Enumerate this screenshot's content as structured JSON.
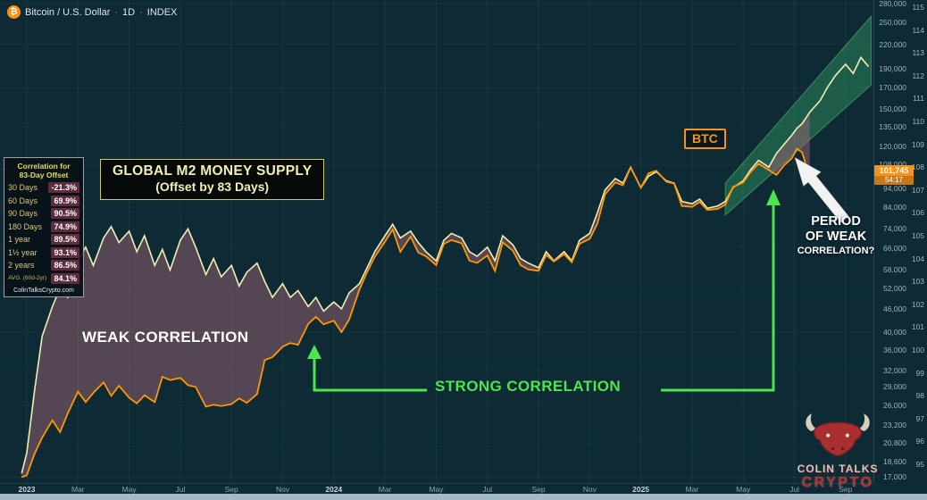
{
  "header": {
    "symbol": "Bitcoin / U.S. Dollar",
    "interval": "1D",
    "exchange": "INDEX",
    "separator": "·",
    "bitcoin_glyph": "₿"
  },
  "correlation_panel": {
    "title_line1": "Correlation for",
    "title_line2": "83-Day Offset",
    "rows": [
      {
        "label": "30 Days",
        "value": "-21.3%"
      },
      {
        "label": "60 Days",
        "value": "69.9%"
      },
      {
        "label": "90 Days",
        "value": "90.5%"
      },
      {
        "label": "180 Days",
        "value": "74.9%"
      },
      {
        "label": "1 year",
        "value": "89.5%"
      },
      {
        "label": "1½ year",
        "value": "93.1%"
      },
      {
        "label": "2 years",
        "value": "86.5%"
      }
    ],
    "avg_row": {
      "label": "AVG. (60d-2yr)",
      "value": "84.1%"
    },
    "footer": "ColinTalksCrypto.com"
  },
  "annotations": {
    "m2_label_line1": "GLOBAL M2 MONEY SUPPLY",
    "m2_label_line2": "(Offset by 83 Days)",
    "btc_label": "BTC",
    "weak": "WEAK CORRELATION",
    "strong": "STRONG CORRELATION",
    "period_weak_line1": "PERIOD",
    "period_weak_line2": "OF WEAK",
    "period_weak_line3": "CORRELATION?"
  },
  "price_tag": {
    "price": "101,745",
    "countdown": "54:17"
  },
  "watermark": {
    "line1": "COLIN TALKS",
    "line2": "CRYPTO"
  },
  "colors": {
    "background": "#0d2a35",
    "btc_line": "#ff9800",
    "m2_line": "#f2eeb3",
    "weak_fill": "rgba(171,104,119,0.45)",
    "channel_fill": "rgba(74,222,128,0.28)",
    "strong_green": "#4ce64c",
    "tag_orange": "#f7931a"
  },
  "chart_data": {
    "type": "line",
    "title": "Bitcoin / U.S. Dollar 1D with Global M2 Money Supply offset by 83 days",
    "x_labels": [
      "2023",
      "Mar",
      "May",
      "Jul",
      "Sep",
      "Nov",
      "2024",
      "Mar",
      "May",
      "Jul",
      "Sep",
      "Nov",
      "2025",
      "Mar",
      "May",
      "Jul",
      "Sep"
    ],
    "x_unit": "month index from Jan 2023 (2 months per labelled tick)",
    "price_axis": {
      "scale": "log",
      "range": [
        17000,
        280000
      ],
      "ticks": [
        280000,
        250000,
        220000,
        190000,
        170000,
        150000,
        135000,
        120000,
        108000,
        94000,
        84000,
        74000,
        66000,
        58000,
        52000,
        46000,
        40000,
        36000,
        32000,
        29000,
        26000,
        23200,
        20800,
        18600,
        17000
      ]
    },
    "m2_axis": {
      "scale": "linear",
      "range": [
        95,
        115
      ],
      "ticks": [
        115,
        114,
        113,
        112,
        111,
        110,
        109,
        108,
        107,
        106,
        105,
        104,
        103,
        102,
        101,
        100,
        99,
        98,
        97,
        96,
        95
      ]
    },
    "series": [
      {
        "name": "BTC / USD",
        "axis": "price",
        "color": "#ff9800",
        "points": [
          [
            -0.2,
            17000
          ],
          [
            0,
            17200
          ],
          [
            0.3,
            19500
          ],
          [
            0.6,
            21500
          ],
          [
            1,
            23800
          ],
          [
            1.3,
            22200
          ],
          [
            1.6,
            24800
          ],
          [
            2,
            28200
          ],
          [
            2.3,
            26500
          ],
          [
            2.6,
            28000
          ],
          [
            3,
            29800
          ],
          [
            3.3,
            27500
          ],
          [
            3.6,
            29200
          ],
          [
            4,
            27200
          ],
          [
            4.3,
            26300
          ],
          [
            4.6,
            27600
          ],
          [
            5,
            26500
          ],
          [
            5.3,
            30800
          ],
          [
            5.6,
            30200
          ],
          [
            6,
            30600
          ],
          [
            6.3,
            29300
          ],
          [
            6.6,
            29000
          ],
          [
            7,
            25800
          ],
          [
            7.3,
            26100
          ],
          [
            7.6,
            25900
          ],
          [
            8,
            26200
          ],
          [
            8.3,
            27100
          ],
          [
            8.6,
            26400
          ],
          [
            9,
            27800
          ],
          [
            9.3,
            34000
          ],
          [
            9.6,
            34600
          ],
          [
            10,
            36800
          ],
          [
            10.3,
            37600
          ],
          [
            10.6,
            37200
          ],
          [
            11,
            42100
          ],
          [
            11.3,
            43900
          ],
          [
            11.6,
            42000
          ],
          [
            12,
            42900
          ],
          [
            12.3,
            40100
          ],
          [
            12.6,
            43200
          ],
          [
            13,
            51600
          ],
          [
            13.3,
            57200
          ],
          [
            13.6,
            62600
          ],
          [
            14,
            68500
          ],
          [
            14.3,
            73600
          ],
          [
            14.6,
            64500
          ],
          [
            15,
            70600
          ],
          [
            15.3,
            64200
          ],
          [
            15.6,
            62800
          ],
          [
            16,
            59600
          ],
          [
            16.3,
            67600
          ],
          [
            16.6,
            69100
          ],
          [
            17,
            67800
          ],
          [
            17.3,
            61200
          ],
          [
            17.6,
            60400
          ],
          [
            18,
            63100
          ],
          [
            18.3,
            57600
          ],
          [
            18.6,
            68200
          ],
          [
            19,
            64900
          ],
          [
            19.3,
            59600
          ],
          [
            19.6,
            58100
          ],
          [
            20,
            57600
          ],
          [
            20.3,
            63300
          ],
          [
            20.6,
            60900
          ],
          [
            21,
            63600
          ],
          [
            21.3,
            60600
          ],
          [
            21.6,
            67600
          ],
          [
            22,
            69600
          ],
          [
            22.3,
            76200
          ],
          [
            22.6,
            90600
          ],
          [
            23,
            97200
          ],
          [
            23.3,
            95600
          ],
          [
            23.6,
            106200
          ],
          [
            24,
            94200
          ],
          [
            24.3,
            102600
          ],
          [
            24.6,
            104200
          ],
          [
            25,
            97600
          ],
          [
            25.3,
            96600
          ],
          [
            25.6,
            84600
          ],
          [
            26,
            84100
          ],
          [
            26.3,
            86600
          ],
          [
            26.6,
            82600
          ],
          [
            27,
            83100
          ],
          [
            27.3,
            85200
          ],
          [
            27.6,
            94600
          ],
          [
            28,
            97200
          ],
          [
            28.3,
            103600
          ],
          [
            28.6,
            108600
          ],
          [
            29,
            104600
          ],
          [
            29.3,
            101600
          ],
          [
            29.6,
            107600
          ],
          [
            29.9,
            112200
          ],
          [
            30.1,
            118600
          ],
          [
            30.3,
            116200
          ],
          [
            30.45,
            108200
          ],
          [
            30.6,
            101745
          ]
        ]
      },
      {
        "name": "Global M2 Money Supply (offset 83 days, $T)",
        "axis": "m2",
        "color": "#f2eeb3",
        "points": [
          [
            -0.2,
            94.6
          ],
          [
            0,
            95.5
          ],
          [
            0.3,
            98.2
          ],
          [
            0.6,
            100.6
          ],
          [
            1,
            101.9
          ],
          [
            1.3,
            102.7
          ],
          [
            1.6,
            102.3
          ],
          [
            2,
            103.9
          ],
          [
            2.3,
            104.5
          ],
          [
            2.6,
            103.7
          ],
          [
            3,
            104.9
          ],
          [
            3.3,
            105.4
          ],
          [
            3.6,
            104.7
          ],
          [
            4,
            105.2
          ],
          [
            4.3,
            104.3
          ],
          [
            4.6,
            105.0
          ],
          [
            5,
            103.7
          ],
          [
            5.3,
            104.4
          ],
          [
            5.6,
            103.5
          ],
          [
            6,
            104.8
          ],
          [
            6.3,
            105.3
          ],
          [
            6.6,
            104.5
          ],
          [
            7,
            103.3
          ],
          [
            7.3,
            104.0
          ],
          [
            7.6,
            103.2
          ],
          [
            8,
            103.7
          ],
          [
            8.3,
            102.8
          ],
          [
            8.6,
            103.4
          ],
          [
            9,
            103.8
          ],
          [
            9.3,
            103.0
          ],
          [
            9.6,
            102.3
          ],
          [
            10,
            102.9
          ],
          [
            10.3,
            102.3
          ],
          [
            10.6,
            102.6
          ],
          [
            11,
            101.9
          ],
          [
            11.3,
            102.3
          ],
          [
            11.6,
            101.7
          ],
          [
            12,
            102.1
          ],
          [
            12.3,
            101.8
          ],
          [
            12.6,
            102.5
          ],
          [
            13,
            102.9
          ],
          [
            13.3,
            103.6
          ],
          [
            13.6,
            104.3
          ],
          [
            14,
            105.0
          ],
          [
            14.3,
            105.5
          ],
          [
            14.6,
            104.9
          ],
          [
            15,
            105.2
          ],
          [
            15.3,
            104.7
          ],
          [
            15.6,
            104.3
          ],
          [
            16,
            103.9
          ],
          [
            16.3,
            104.8
          ],
          [
            16.6,
            105.1
          ],
          [
            17,
            104.9
          ],
          [
            17.3,
            104.3
          ],
          [
            17.6,
            104.1
          ],
          [
            18,
            104.5
          ],
          [
            18.3,
            103.9
          ],
          [
            18.6,
            105.0
          ],
          [
            19,
            104.6
          ],
          [
            19.3,
            104.0
          ],
          [
            19.6,
            103.8
          ],
          [
            20,
            103.6
          ],
          [
            20.3,
            104.3
          ],
          [
            20.6,
            103.9
          ],
          [
            21,
            104.3
          ],
          [
            21.3,
            103.9
          ],
          [
            21.6,
            104.8
          ],
          [
            22,
            105.1
          ],
          [
            22.3,
            106.0
          ],
          [
            22.6,
            107.0
          ],
          [
            23,
            107.5
          ],
          [
            23.3,
            107.3
          ],
          [
            23.6,
            108.0
          ],
          [
            24,
            107.1
          ],
          [
            24.3,
            107.6
          ],
          [
            24.6,
            107.8
          ],
          [
            25,
            107.4
          ],
          [
            25.3,
            107.3
          ],
          [
            25.6,
            106.5
          ],
          [
            26,
            106.4
          ],
          [
            26.3,
            106.6
          ],
          [
            26.6,
            106.2
          ],
          [
            27,
            106.3
          ],
          [
            27.3,
            106.5
          ],
          [
            27.6,
            107.1
          ],
          [
            28,
            107.4
          ],
          [
            28.3,
            107.9
          ],
          [
            28.6,
            108.3
          ],
          [
            29,
            108.0
          ],
          [
            29.3,
            108.6
          ],
          [
            29.6,
            109.0
          ],
          [
            29.9,
            109.4
          ],
          [
            30.1,
            109.7
          ],
          [
            30.3,
            109.9
          ],
          [
            30.6,
            110.4
          ],
          [
            31,
            110.9
          ],
          [
            31.3,
            111.5
          ],
          [
            31.6,
            112.0
          ],
          [
            32,
            112.5
          ],
          [
            32.3,
            112.1
          ],
          [
            32.6,
            112.8
          ],
          [
            32.9,
            112.4
          ]
        ]
      }
    ],
    "fill_between": {
      "color": "rgba(171,104,119,0.45)",
      "note": "shaded gap between BTC and M2 = weak correlation"
    },
    "projection_channel": {
      "color": "rgba(74,222,128,0.28)",
      "edge_color": "rgba(110,220,120,0.45)",
      "axis": "m2",
      "lower": [
        [
          27.3,
          105.9
        ],
        [
          33,
          111.6
        ]
      ],
      "upper": [
        [
          27.3,
          107.3
        ],
        [
          33,
          114.6
        ]
      ]
    },
    "legend_position": "none",
    "grid": true
  }
}
